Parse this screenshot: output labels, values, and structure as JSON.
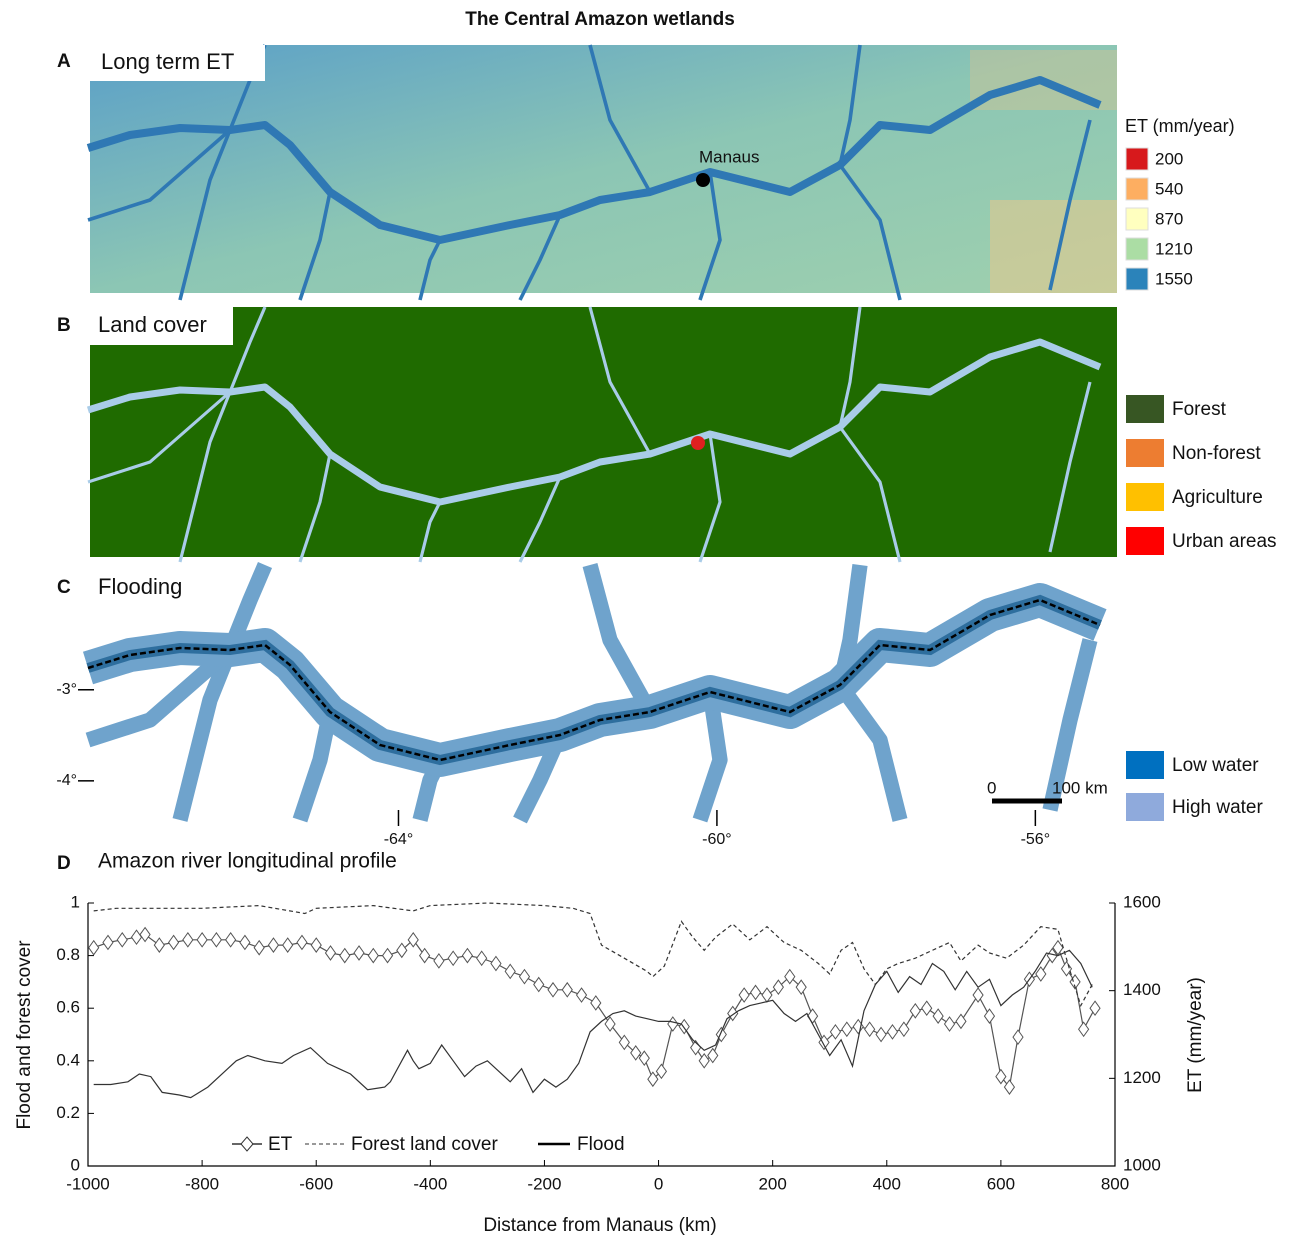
{
  "title": "The Central Amazon wetlands",
  "panels": [
    {
      "letter": "A",
      "title": "Long term ET",
      "annotation": "Manaus",
      "legend": {
        "title": "ET (mm/year)",
        "items": [
          {
            "value": 200,
            "color": "#d7191c"
          },
          {
            "value": 540,
            "color": "#fdae61"
          },
          {
            "value": 870,
            "color": "#ffffbf"
          },
          {
            "value": 1210,
            "color": "#abdda4"
          },
          {
            "value": 1550,
            "color": "#2b83ba"
          }
        ]
      }
    },
    {
      "letter": "B",
      "title": "Land cover",
      "legend": {
        "items": [
          {
            "label": "Forest",
            "color": "#375623"
          },
          {
            "label": "Non-forest",
            "color": "#ed7d31"
          },
          {
            "label": "Agriculture",
            "color": "#ffc000"
          },
          {
            "label": "Urban areas",
            "color": "#ff0000"
          }
        ]
      }
    },
    {
      "letter": "C",
      "title": "Flooding",
      "xlim": [
        -67.9,
        -55.1
      ],
      "ylim": [
        -4.43,
        -1.63
      ],
      "xticks": [
        {
          "value": -64,
          "label": "-64°"
        },
        {
          "value": -60,
          "label": "-60°"
        },
        {
          "value": -56,
          "label": "-56°"
        }
      ],
      "yticks": [
        {
          "value": -3,
          "label": "-3°"
        },
        {
          "value": -4,
          "label": "-4°"
        }
      ],
      "scale_bar": [
        "0",
        "100 km"
      ],
      "legend": {
        "items": [
          {
            "label": "Low water",
            "color": "#0070c0"
          },
          {
            "label": "High water",
            "color": "#8faadc"
          }
        ]
      }
    },
    {
      "letter": "D",
      "title": "Amazon river longitudinal profile"
    }
  ],
  "chart_data": {
    "type": "line",
    "xlabel": "Distance from Manaus (km)",
    "ylabel": "Flood and forest cover",
    "y2label": "ET (mm/year)",
    "xlim": [
      -1000,
      800
    ],
    "xticks": [
      -1000,
      -800,
      -600,
      -400,
      -200,
      0,
      200,
      400,
      600,
      800
    ],
    "ylim": [
      0,
      1
    ],
    "yticks": [
      0,
      0.2,
      0.4,
      0.6,
      0.8,
      1
    ],
    "y2lim": [
      1000,
      1600
    ],
    "y2ticks": [
      1000,
      1200,
      1400,
      1600
    ],
    "series": [
      {
        "name": "ET",
        "color": "#555555",
        "axis": "y2",
        "marker": "diamond",
        "line_style": "solid",
        "x": [
          -990,
          -965,
          -940,
          -915,
          -900,
          -875,
          -850,
          -825,
          -800,
          -775,
          -750,
          -725,
          -700,
          -675,
          -650,
          -625,
          -600,
          -575,
          -550,
          -525,
          -500,
          -475,
          -450,
          -430,
          -410,
          -385,
          -360,
          -335,
          -310,
          -285,
          -260,
          -235,
          -210,
          -185,
          -160,
          -135,
          -110,
          -85,
          -60,
          -40,
          -25,
          -10,
          5,
          25,
          45,
          65,
          80,
          95,
          110,
          130,
          150,
          170,
          190,
          210,
          230,
          250,
          270,
          290,
          310,
          330,
          350,
          370,
          390,
          410,
          430,
          450,
          470,
          490,
          510,
          530,
          560,
          580,
          600,
          615,
          630,
          650,
          670,
          690,
          700,
          715,
          730,
          745,
          765
        ],
        "values": [
          1498,
          1510,
          1516,
          1522,
          1528,
          1504,
          1510,
          1516,
          1516,
          1516,
          1516,
          1510,
          1498,
          1504,
          1504,
          1510,
          1504,
          1486,
          1480,
          1486,
          1480,
          1480,
          1492,
          1516,
          1480,
          1468,
          1474,
          1480,
          1474,
          1462,
          1444,
          1432,
          1414,
          1402,
          1402,
          1390,
          1372,
          1324,
          1282,
          1258,
          1246,
          1198,
          1216,
          1324,
          1318,
          1270,
          1240,
          1252,
          1300,
          1348,
          1390,
          1396,
          1390,
          1408,
          1432,
          1408,
          1342,
          1282,
          1306,
          1312,
          1318,
          1312,
          1300,
          1306,
          1312,
          1354,
          1360,
          1342,
          1324,
          1330,
          1390,
          1342,
          1204,
          1180,
          1294,
          1426,
          1438,
          1480,
          1498,
          1450,
          1420,
          1312,
          1360
        ]
      },
      {
        "name": "Forest land cover",
        "color": "#333333",
        "axis": "y",
        "line_style": "dashed",
        "x": [
          -990,
          -950,
          -900,
          -800,
          -700,
          -620,
          -600,
          -500,
          -430,
          -400,
          -300,
          -200,
          -150,
          -120,
          -100,
          -60,
          -20,
          -10,
          10,
          40,
          60,
          80,
          100,
          130,
          160,
          190,
          220,
          250,
          280,
          300,
          320,
          340,
          360,
          380,
          400,
          420,
          450,
          480,
          510,
          530,
          560,
          580,
          610,
          640,
          670,
          700,
          720,
          740,
          760
        ],
        "values": [
          0.97,
          0.98,
          0.98,
          0.98,
          0.99,
          0.96,
          0.98,
          0.99,
          0.97,
          0.99,
          1.0,
          0.99,
          0.98,
          0.96,
          0.84,
          0.79,
          0.74,
          0.72,
          0.76,
          0.93,
          0.87,
          0.82,
          0.87,
          0.92,
          0.86,
          0.91,
          0.85,
          0.82,
          0.77,
          0.73,
          0.82,
          0.85,
          0.75,
          0.69,
          0.75,
          0.77,
          0.79,
          0.82,
          0.85,
          0.78,
          0.84,
          0.81,
          0.79,
          0.84,
          0.91,
          0.9,
          0.75,
          0.61,
          0.69
        ]
      },
      {
        "name": "Flood",
        "color": "#333333",
        "axis": "y",
        "line_style": "solid",
        "x": [
          -990,
          -960,
          -930,
          -910,
          -890,
          -870,
          -840,
          -820,
          -790,
          -760,
          -740,
          -720,
          -690,
          -660,
          -640,
          -610,
          -580,
          -560,
          -540,
          -510,
          -480,
          -470,
          -440,
          -430,
          -420,
          -400,
          -380,
          -360,
          -340,
          -320,
          -300,
          -280,
          -260,
          -240,
          -220,
          -200,
          -180,
          -160,
          -140,
          -120,
          -100,
          -80,
          -60,
          -40,
          -20,
          0,
          20,
          40,
          60,
          80,
          100,
          120,
          140,
          160,
          180,
          200,
          220,
          240,
          260,
          280,
          300,
          320,
          340,
          360,
          380,
          400,
          420,
          440,
          460,
          480,
          500,
          520,
          540,
          560,
          580,
          600,
          620,
          640,
          660,
          680,
          700,
          720,
          740,
          760
        ],
        "values": [
          0.31,
          0.31,
          0.32,
          0.35,
          0.34,
          0.28,
          0.27,
          0.26,
          0.3,
          0.36,
          0.4,
          0.42,
          0.4,
          0.39,
          0.42,
          0.45,
          0.39,
          0.37,
          0.35,
          0.29,
          0.3,
          0.32,
          0.44,
          0.4,
          0.37,
          0.39,
          0.46,
          0.4,
          0.34,
          0.38,
          0.4,
          0.36,
          0.32,
          0.37,
          0.28,
          0.33,
          0.3,
          0.33,
          0.39,
          0.51,
          0.55,
          0.58,
          0.59,
          0.57,
          0.56,
          0.55,
          0.55,
          0.54,
          0.48,
          0.44,
          0.46,
          0.56,
          0.59,
          0.61,
          0.62,
          0.63,
          0.58,
          0.55,
          0.58,
          0.5,
          0.42,
          0.48,
          0.38,
          0.59,
          0.69,
          0.74,
          0.66,
          0.72,
          0.69,
          0.77,
          0.74,
          0.67,
          0.74,
          0.68,
          0.71,
          0.61,
          0.65,
          0.68,
          0.74,
          0.81,
          0.8,
          0.82,
          0.77,
          0.68
        ]
      }
    ]
  }
}
